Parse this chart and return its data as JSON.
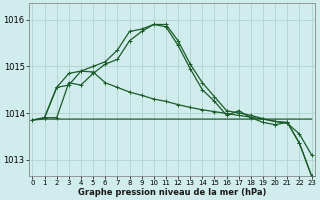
{
  "title": "Graphe pression niveau de la mer (hPa)",
  "bg_color": "#d0ecec",
  "grid_color": "#b0d4d0",
  "line_color": "#1a5c28",
  "ylim": [
    1012.65,
    1016.35
  ],
  "yticks": [
    1013,
    1014,
    1015,
    1016
  ],
  "xlim": [
    -0.3,
    23.3
  ],
  "xticks": [
    0,
    1,
    2,
    3,
    4,
    5,
    6,
    7,
    8,
    9,
    10,
    11,
    12,
    13,
    14,
    15,
    16,
    17,
    18,
    19,
    20,
    21,
    22,
    23
  ],
  "series1_x": [
    0,
    1,
    2,
    3,
    4,
    5,
    6,
    7,
    8,
    9,
    10,
    11,
    12,
    13,
    14,
    15,
    16,
    17,
    18,
    19,
    20,
    21,
    22,
    23
  ],
  "series1": [
    1013.85,
    1013.9,
    1013.9,
    1014.65,
    1014.6,
    1014.85,
    1015.05,
    1015.15,
    1015.55,
    1015.75,
    1015.9,
    1015.85,
    1015.45,
    1014.95,
    1014.5,
    1014.25,
    1013.95,
    1014.05,
    1013.9,
    1013.8,
    1013.75,
    1013.8,
    1013.35,
    1012.65
  ],
  "series2_x": [
    1,
    2,
    3,
    4,
    5,
    6,
    7,
    8,
    9,
    10,
    11,
    12,
    13,
    14,
    15,
    16,
    17,
    18,
    19,
    20,
    21,
    22,
    23
  ],
  "series2": [
    1013.9,
    1014.55,
    1014.85,
    1014.9,
    1015.0,
    1015.1,
    1015.35,
    1015.75,
    1015.8,
    1015.9,
    1015.9,
    1015.55,
    1015.05,
    1014.65,
    1014.35,
    1014.05,
    1014.0,
    1013.95,
    1013.88,
    1013.82,
    1013.8,
    1013.35,
    1012.65
  ],
  "series3_x": [
    0,
    1,
    2,
    3,
    4,
    5,
    6,
    7,
    8,
    9,
    10,
    11,
    12,
    13,
    14,
    15,
    16,
    17,
    18,
    19,
    20,
    21,
    22,
    23
  ],
  "series3": [
    1013.85,
    1013.9,
    1014.55,
    1014.6,
    1014.9,
    1014.88,
    1014.65,
    1014.55,
    1014.45,
    1014.38,
    1014.3,
    1014.25,
    1014.18,
    1014.12,
    1014.07,
    1014.03,
    1013.99,
    1013.95,
    1013.91,
    1013.87,
    1013.82,
    1013.78,
    1013.55,
    1013.1
  ],
  "series4_x": [
    0,
    1,
    2,
    3,
    4,
    5,
    6,
    7,
    8,
    9,
    10,
    11,
    12,
    13,
    14,
    15,
    16,
    17,
    18,
    19,
    20,
    21,
    22,
    23
  ],
  "series4": [
    1013.85,
    1013.87,
    1013.87,
    1013.87,
    1013.87,
    1013.87,
    1013.87,
    1013.87,
    1013.87,
    1013.87,
    1013.87,
    1013.87,
    1013.87,
    1013.87,
    1013.87,
    1013.87,
    1013.87,
    1013.87,
    1013.87,
    1013.87,
    1013.87,
    1013.87,
    1013.87,
    1013.87
  ],
  "ytick_fontsize": 6,
  "xtick_fontsize": 5,
  "xlabel_fontsize": 6
}
